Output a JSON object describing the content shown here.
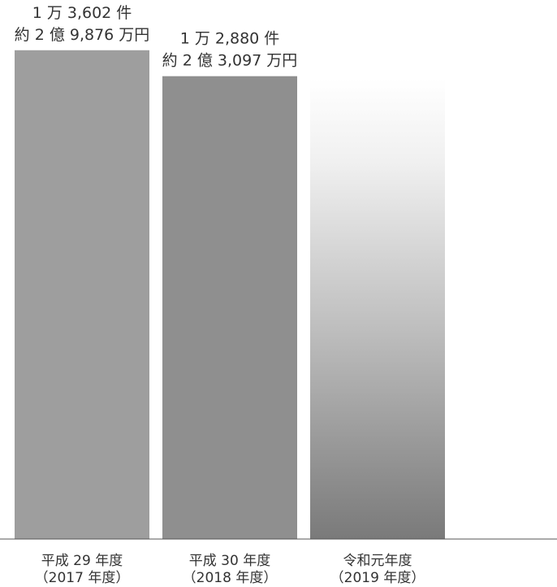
{
  "chart_data": {
    "type": "bar",
    "categories": [
      {
        "line1": "平成 29 年度",
        "line2": "（2017 年度）"
      },
      {
        "line1": "平成 30 年度",
        "line2": "（2018 年度）"
      },
      {
        "line1": "令和元年度",
        "line2": "（2019 年度）"
      }
    ],
    "values": [
      13602,
      12880,
      12800
    ],
    "value_labels": [
      {
        "line1": "1 万 3,602 件",
        "line2": "約 2 億 9,876 万円"
      },
      {
        "line1": "1 万 2,880 件",
        "line2": "約 2 億 3,097 万円"
      },
      {
        "line1": "",
        "line2": ""
      }
    ],
    "colors": [
      "#9e9e9e",
      "#8f8f8f",
      "gradient-white-to-#7a7a7a"
    ],
    "title": "",
    "xlabel": "",
    "ylabel": "",
    "ylim": [
      0,
      15000
    ],
    "grid": false,
    "legend": "none"
  }
}
